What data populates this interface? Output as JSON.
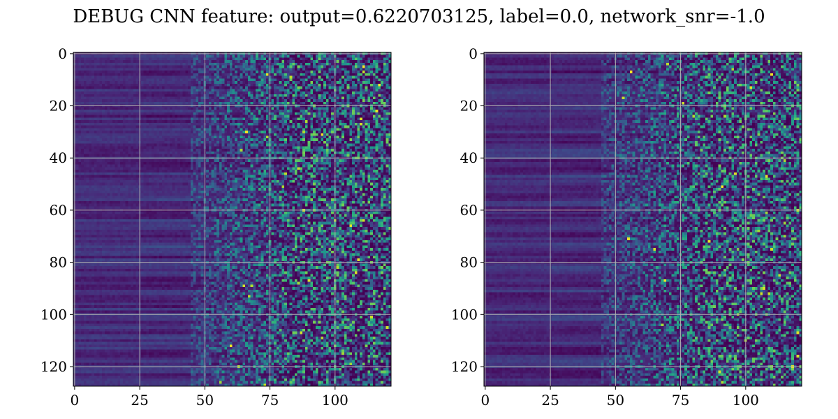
{
  "figure": {
    "title": "DEBUG CNN feature: output=0.6220703125, label=0.0, network_snr=-1.0"
  },
  "colormap": {
    "name": "viridis",
    "colors": [
      "#440154",
      "#482878",
      "#3e4989",
      "#31688e",
      "#26828e",
      "#1f9e89",
      "#35b779",
      "#6ece58",
      "#b5de2b",
      "#fde725"
    ],
    "grid_color": "#b0b0b0",
    "axis_color": "#000000"
  },
  "chart_data": [
    {
      "type": "heatmap",
      "title": "",
      "xlabel": "",
      "ylabel": "",
      "rows": 128,
      "cols": 122,
      "xlim": [
        -0.5,
        121.5
      ],
      "ylim": [
        127.5,
        -0.5
      ],
      "y_inverted": true,
      "xticks": [
        0,
        25,
        50,
        75,
        100
      ],
      "yticks": [
        0,
        20,
        40,
        60,
        80,
        100,
        120
      ],
      "grid": true,
      "value_range": [
        0,
        1
      ],
      "description_of_values": "low values (dark purple) in columns 0-50 with faint horizontal banding; increasing noisy speckle (blue-green, occasional yellow) in columns 60-121",
      "seed": 17
    },
    {
      "type": "heatmap",
      "title": "",
      "xlabel": "",
      "ylabel": "",
      "rows": 128,
      "cols": 122,
      "xlim": [
        -0.5,
        121.5
      ],
      "ylim": [
        127.5,
        -0.5
      ],
      "y_inverted": true,
      "xticks": [
        0,
        25,
        50,
        75,
        100
      ],
      "yticks": [
        0,
        20,
        40,
        60,
        80,
        100,
        120
      ],
      "grid": true,
      "value_range": [
        0,
        1
      ],
      "description_of_values": "low values (dark purple) in columns 0-50 with faint horizontal banding; increasing noisy speckle (blue-green, occasional yellow) in columns 60-121",
      "seed": 91
    }
  ]
}
